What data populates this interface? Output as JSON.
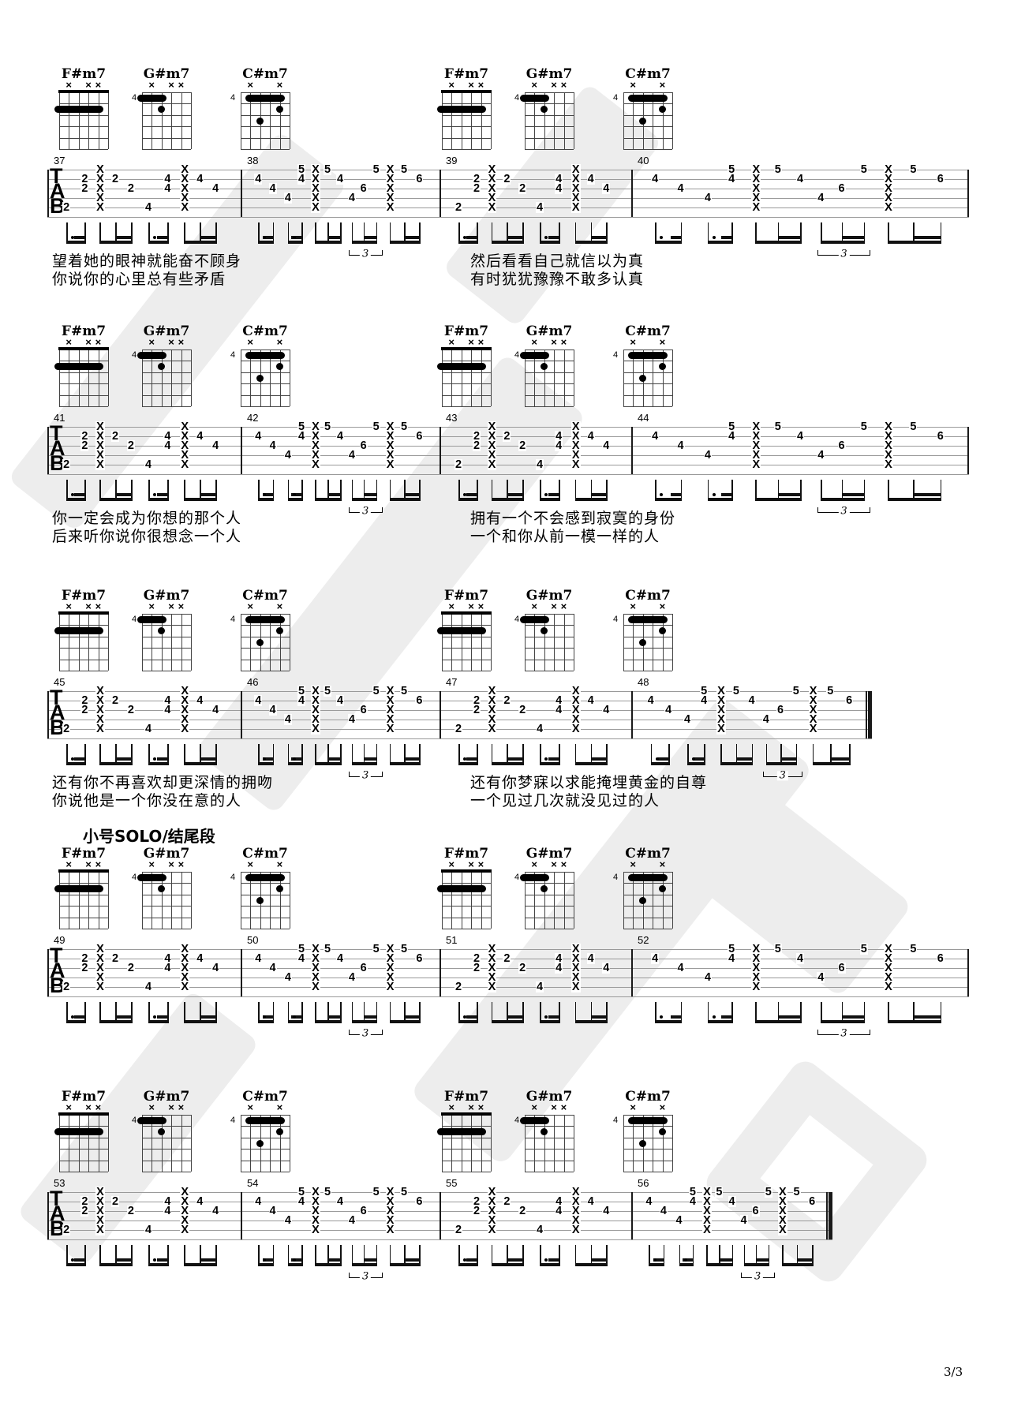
{
  "page": {
    "number": "3/3"
  },
  "sheet": {
    "muted_marker": "×",
    "staff_letters": [
      "T",
      "A",
      "B"
    ],
    "triplet_label": "3",
    "section_label": "小号SOLO/结尾段",
    "colors": {
      "ink": "#000000",
      "staff_line": "#9a9a9a",
      "watermark": "#ededed"
    },
    "chords": [
      {
        "name": "F#m7",
        "base_fret": "",
        "nut": true,
        "muted_strings": [
          2,
          4,
          5
        ],
        "barre": {
          "row": 2,
          "from": 1,
          "to": 5
        },
        "dots": []
      },
      {
        "name": "G#m7",
        "base_fret": "4",
        "nut": false,
        "muted_strings": [
          2,
          4,
          5
        ],
        "barre": {
          "row": 1,
          "from": 1,
          "to": 3
        },
        "dots": [
          [
            3,
            2
          ]
        ]
      },
      {
        "name": "C#m7",
        "base_fret": "4",
        "nut": false,
        "muted_strings": [
          2,
          5
        ],
        "barre": {
          "row": 1,
          "from": 2,
          "to": 5
        },
        "dots": [
          [
            5,
            2
          ],
          [
            3,
            3
          ]
        ]
      }
    ],
    "patterns": {
      "A": {
        "events": [
          {
            "p": 0.055,
            "n": [
              [
                5,
                "2"
              ]
            ]
          },
          {
            "p": 0.16,
            "n": [
              [
                2,
                "2"
              ],
              [
                3,
                "2"
              ]
            ]
          },
          {
            "p": 0.245,
            "n": [
              [
                1,
                "X"
              ],
              [
                2,
                "X"
              ],
              [
                3,
                "X"
              ],
              [
                4,
                "X"
              ],
              [
                5,
                "X"
              ]
            ]
          },
          {
            "p": 0.335,
            "n": [
              [
                2,
                "2"
              ]
            ]
          },
          {
            "p": 0.425,
            "n": [
              [
                3,
                "2"
              ]
            ]
          },
          {
            "p": 0.525,
            "n": [
              [
                5,
                "4"
              ]
            ]
          },
          {
            "p": 0.635,
            "n": [
              [
                2,
                "4"
              ],
              [
                3,
                "4"
              ]
            ]
          },
          {
            "p": 0.73,
            "n": [
              [
                1,
                "X"
              ],
              [
                2,
                "X"
              ],
              [
                3,
                "X"
              ],
              [
                4,
                "X"
              ],
              [
                5,
                "X"
              ]
            ]
          },
          {
            "p": 0.82,
            "n": [
              [
                2,
                "4"
              ]
            ]
          },
          {
            "p": 0.91,
            "n": [
              [
                3,
                "4"
              ]
            ]
          }
        ],
        "beam_groups": [
          {
            "idx": [
              0,
              1
            ],
            "type": "dotted",
            "triplet": false
          },
          {
            "idx": [
              2,
              3,
              4
            ],
            "type": "run",
            "triplet": false
          },
          {
            "idx": [
              5,
              6
            ],
            "type": "dotted",
            "triplet": false
          },
          {
            "idx": [
              7,
              8,
              9
            ],
            "type": "run",
            "triplet": false
          }
        ]
      },
      "B": {
        "events": [
          {
            "p": 0.045,
            "n": [
              [
                2,
                "4"
              ]
            ]
          },
          {
            "p": 0.125,
            "n": [
              [
                3,
                "4"
              ]
            ]
          },
          {
            "p": 0.21,
            "n": [
              [
                4,
                "4"
              ]
            ]
          },
          {
            "p": 0.285,
            "n": [
              [
                1,
                "5"
              ],
              [
                2,
                "4"
              ]
            ]
          },
          {
            "p": 0.36,
            "n": [
              [
                1,
                "X"
              ],
              [
                2,
                "X"
              ],
              [
                3,
                "X"
              ],
              [
                4,
                "X"
              ],
              [
                5,
                "X"
              ]
            ]
          },
          {
            "p": 0.43,
            "n": [
              [
                1,
                "5"
              ]
            ]
          },
          {
            "p": 0.5,
            "n": [
              [
                2,
                "4"
              ]
            ]
          },
          {
            "p": 0.565,
            "n": [
              [
                4,
                "4"
              ]
            ]
          },
          {
            "p": 0.63,
            "n": [
              [
                3,
                "6"
              ]
            ]
          },
          {
            "p": 0.7,
            "n": [
              [
                1,
                "5"
              ]
            ]
          },
          {
            "p": 0.775,
            "n": [
              [
                1,
                "X"
              ],
              [
                2,
                "X"
              ],
              [
                3,
                "X"
              ],
              [
                4,
                "X"
              ],
              [
                5,
                "X"
              ]
            ]
          },
          {
            "p": 0.855,
            "n": [
              [
                1,
                "5"
              ]
            ]
          },
          {
            "p": 0.94,
            "n": [
              [
                2,
                "6"
              ]
            ]
          }
        ],
        "beam_groups": [
          {
            "idx": [
              0,
              1
            ],
            "type": "dotted",
            "triplet": false
          },
          {
            "idx": [
              2,
              3
            ],
            "type": "dotted",
            "triplet": false
          },
          {
            "idx": [
              4,
              5,
              6
            ],
            "type": "run",
            "triplet": false
          },
          {
            "idx": [
              7,
              8,
              9
            ],
            "type": "run",
            "triplet": true
          },
          {
            "idx": [
              10,
              11,
              12
            ],
            "type": "run",
            "triplet": false
          }
        ]
      }
    },
    "systems": [
      {
        "measure_numbers": [
          "37",
          "38",
          "39",
          "40"
        ],
        "chord_row": [
          "F#m7",
          "G#m7",
          "C#m7",
          "F#m7",
          "G#m7",
          "C#m7"
        ],
        "label": "",
        "end": "bar",
        "lyrics": [
          {
            "col": 1,
            "lines": [
              "望着她的眼神就能奋不顾身",
              "你说你的心里总有些矛盾"
            ]
          },
          {
            "col": 2,
            "lines": [
              "然后看看自己就信以为真",
              "有时犹犹豫豫不敢多认真"
            ]
          }
        ]
      },
      {
        "measure_numbers": [
          "41",
          "42",
          "43",
          "44"
        ],
        "chord_row": [
          "F#m7",
          "G#m7",
          "C#m7",
          "F#m7",
          "G#m7",
          "C#m7"
        ],
        "label": "",
        "end": "bar",
        "lyrics": [
          {
            "col": 1,
            "lines": [
              "你一定会成为你想的那个人",
              "后来听你说你很想念一个人"
            ]
          },
          {
            "col": 2,
            "lines": [
              "拥有一个不会感到寂寞的身份",
              "一个和你从前一模一样的人"
            ]
          }
        ]
      },
      {
        "measure_numbers": [
          "45",
          "46",
          "47",
          "48"
        ],
        "chord_row": [
          "F#m7",
          "G#m7",
          "C#m7",
          "F#m7",
          "G#m7",
          "C#m7"
        ],
        "label": "",
        "end": "final",
        "lyrics": [
          {
            "col": 1,
            "lines": [
              "还有你不再喜欢却更深情的拥吻",
              "你说他是一个你没在意的人"
            ]
          },
          {
            "col": 2,
            "lines": [
              "还有你梦寐以求能掩埋黄金的自尊",
              "一个见过几次就没见过的人"
            ]
          }
        ]
      },
      {
        "measure_numbers": [
          "49",
          "50",
          "51",
          "52"
        ],
        "chord_row": [
          "F#m7",
          "G#m7",
          "C#m7",
          "F#m7",
          "G#m7",
          "C#m7"
        ],
        "label": "小号SOLO/结尾段",
        "end": "bar",
        "lyrics": []
      },
      {
        "measure_numbers": [
          "53",
          "54",
          "55",
          "56"
        ],
        "chord_row": [
          "F#m7",
          "G#m7",
          "C#m7",
          "F#m7",
          "G#m7",
          "C#m7"
        ],
        "label": "",
        "end": "final",
        "lyrics": []
      }
    ]
  }
}
